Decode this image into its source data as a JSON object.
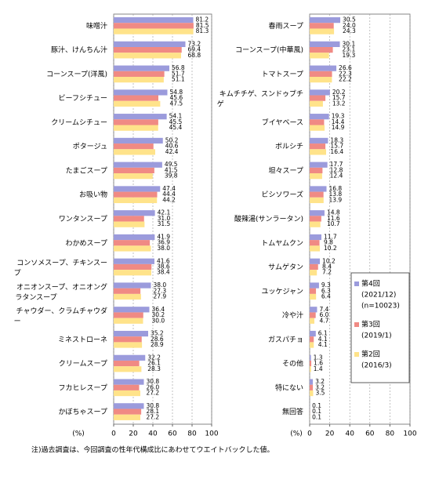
{
  "chart_data": [
    {
      "type": "bar",
      "orientation": "horizontal",
      "xlabel": "(%)",
      "categories": [
        "味噌汁",
        "豚汁、けんちん汁",
        "コーンスープ(洋風)",
        "ビーフシチュー",
        "クリームシチュー",
        "ポタージュ",
        "たまごスープ",
        "お吸い物",
        "ワンタンスープ",
        "わかめスープ",
        "コンソメスープ、チキンスープ",
        "オニオンスープ、オニオングラタンスープ",
        "チャウダー、クラムチャウダー",
        "ミネストローネ",
        "クリームスープ",
        "フカヒレスープ",
        "かぼちゃスープ"
      ],
      "series": [
        {
          "color": "#9b9bdc",
          "values": [
            81.2,
            73.2,
            56.8,
            54.8,
            54.1,
            50.2,
            49.5,
            47.4,
            42.1,
            41.9,
            41.6,
            38.0,
            36.4,
            35.2,
            32.2,
            30.8,
            30.8
          ],
          "value_labels": [
            "81.2",
            "73.2",
            "56.8",
            "54.8",
            "54.1",
            "50.2",
            "49.5",
            "47.4",
            "42.1",
            "41.9",
            "41.6",
            "38.0",
            "36.4",
            "35.2",
            "32.2",
            "30.8",
            "30.8"
          ]
        },
        {
          "color": "#f08a84",
          "values": [
            81.5,
            69.4,
            51.7,
            45.6,
            45.5,
            40.6,
            41.5,
            44.4,
            31.0,
            36.9,
            38.6,
            27.3,
            30.2,
            28.6,
            26.1,
            26.0,
            28.1
          ],
          "value_labels": [
            "81.5",
            "69.4",
            "51.7",
            "45.6",
            "45.5",
            "40.6",
            "41.5",
            "44.4",
            "31.0",
            "36.9",
            "38.6",
            "27.3",
            "30.2",
            "28.6",
            "26.1",
            "26.0",
            "28.1"
          ]
        },
        {
          "color": "#ffe38a",
          "values": [
            81.3,
            68.8,
            51.1,
            47.5,
            45.4,
            42.4,
            39.8,
            44.2,
            31.5,
            38.0,
            38.4,
            27.9,
            30.0,
            28.9,
            28.3,
            27.2,
            27.2
          ],
          "value_labels": [
            "81.3",
            "68.8",
            "51.1",
            "47.5",
            "45.4",
            "42.4",
            "39.8",
            "44.2",
            "31.5",
            "38.0",
            "38.4",
            "27.9",
            "30.0",
            "28.9",
            "28.3",
            "27.2",
            "27.2"
          ]
        }
      ],
      "xlim": [
        0,
        100
      ],
      "xticks": [
        0,
        20,
        40,
        60,
        80,
        100
      ],
      "grid": true
    },
    {
      "type": "bar",
      "orientation": "horizontal",
      "xlabel": "(%)",
      "categories": [
        "春雨スープ",
        "コーンスープ(中華風)",
        "トマトスープ",
        "キムチチゲ、スンドゥブチゲ",
        "ブイヤベース",
        "ボルシチ",
        "坦々スープ",
        "ビシソワーズ",
        "酸辣湯(サンラータン)",
        "トムヤムクン",
        "サムゲタン",
        "ユッケジャン",
        "冷や汁",
        "ガスパチョ",
        "その他",
        "特にない",
        "無回答"
      ],
      "series": [
        {
          "name": "第4回",
          "period": "(2021/12)",
          "n": "(n=10023)",
          "color": "#9b9bdc",
          "values": [
            30.5,
            30.1,
            26.6,
            20.2,
            19.3,
            18.3,
            17.7,
            16.8,
            14.8,
            11.7,
            10.2,
            9.3,
            7.4,
            6.1,
            1.3,
            3.2,
            0.1
          ],
          "value_labels": [
            "30.5",
            "30.1",
            "26.6",
            "20.2",
            "19.3",
            "18.3",
            "17.7",
            "16.8",
            "14.8",
            "11.7",
            "10.2",
            "9.3",
            "7.4",
            "6.1",
            "1.3",
            "3.2",
            "0.1"
          ]
        },
        {
          "name": "第3回",
          "period": "(2019/1)",
          "color": "#f08a84",
          "values": [
            24.0,
            23.1,
            22.3,
            15.7,
            14.4,
            15.7,
            12.8,
            13.8,
            11.6,
            9.8,
            8.4,
            6.3,
            6.0,
            4.1,
            1.6,
            3.2,
            0.1
          ],
          "value_labels": [
            "24.0",
            "23.1",
            "22.3",
            "15.7",
            "14.4",
            "15.7",
            "12.8",
            "13.8",
            "11.6",
            "9.8",
            "8.4",
            "6.3",
            "6.0",
            "4.1",
            "1.6",
            "3.2",
            "0.1"
          ]
        },
        {
          "name": "第2回",
          "period": "(2016/3)",
          "color": "#ffe38a",
          "values": [
            24.3,
            19.3,
            22.2,
            13.2,
            14.9,
            16.4,
            12.4,
            13.9,
            10.7,
            10.2,
            7.2,
            6.4,
            4.7,
            4.1,
            1.4,
            3.5,
            0.1
          ],
          "value_labels": [
            "24.3",
            "19.3",
            "22.2",
            "13.2",
            "14.9",
            "16.4",
            "12.4",
            "13.9",
            "10.7",
            "10.2",
            "7.2",
            "6.4",
            "4.7",
            "4.1",
            "1.4",
            "3.5",
            "0.1"
          ]
        }
      ],
      "xlim": [
        0,
        100
      ],
      "xticks": [
        0,
        20,
        40,
        60,
        80,
        100
      ],
      "grid": true,
      "legend": "lower right"
    }
  ],
  "footnote": "注)過去調査は、今回調査の性年代構成比にあわせてウエイトバックした値。"
}
